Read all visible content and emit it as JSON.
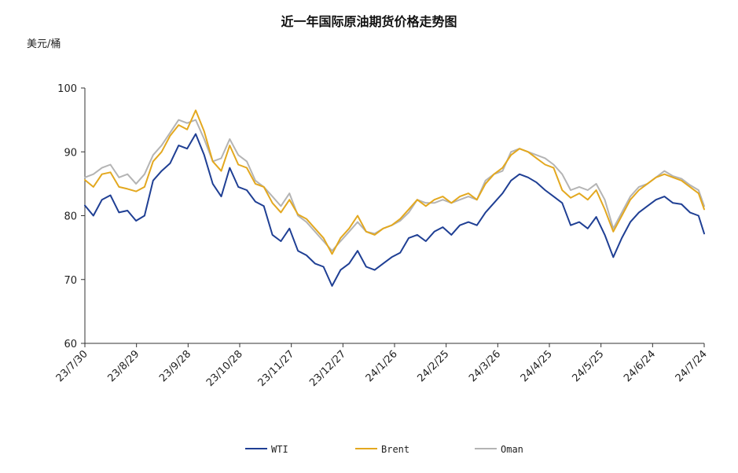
{
  "chart_data": {
    "type": "line",
    "title": "近一年国际原油期货价格走势图",
    "ylabel": "美元/桶",
    "ylim": [
      60,
      100
    ],
    "yticks": [
      "60",
      "70",
      "80",
      "90",
      "100"
    ],
    "x_tick_labels": [
      "23/7/30",
      "23/8/29",
      "23/9/28",
      "23/10/28",
      "23/11/27",
      "23/12/27",
      "24/1/26",
      "24/2/25",
      "24/3/26",
      "24/4/25",
      "24/5/25",
      "24/6/24",
      "24/7/24"
    ],
    "legend_position": "bottom",
    "grid": false,
    "colors": {
      "WTI": "#1f3f94",
      "Brent": "#e3a81f",
      "Oman": "#b4b4b4"
    },
    "series": [
      {
        "name": "WTI",
        "points": [
          [
            0,
            81.6
          ],
          [
            3,
            80.0
          ],
          [
            6,
            82.5
          ],
          [
            9,
            83.2
          ],
          [
            12,
            80.5
          ],
          [
            15,
            80.8
          ],
          [
            18,
            79.2
          ],
          [
            21,
            80.0
          ],
          [
            24,
            85.5
          ],
          [
            27,
            87.0
          ],
          [
            30,
            88.2
          ],
          [
            33,
            91.0
          ],
          [
            36,
            90.5
          ],
          [
            39,
            92.8
          ],
          [
            42,
            89.5
          ],
          [
            45,
            85.0
          ],
          [
            48,
            83.0
          ],
          [
            51,
            87.5
          ],
          [
            54,
            84.5
          ],
          [
            57,
            84.0
          ],
          [
            60,
            82.2
          ],
          [
            63,
            81.5
          ],
          [
            66,
            77.0
          ],
          [
            69,
            76.0
          ],
          [
            72,
            78.0
          ],
          [
            75,
            74.5
          ],
          [
            78,
            73.8
          ],
          [
            81,
            72.5
          ],
          [
            84,
            72.0
          ],
          [
            87,
            69.0
          ],
          [
            90,
            71.5
          ],
          [
            93,
            72.5
          ],
          [
            96,
            74.5
          ],
          [
            99,
            72.0
          ],
          [
            102,
            71.5
          ],
          [
            105,
            72.5
          ],
          [
            108,
            73.5
          ],
          [
            111,
            74.2
          ],
          [
            114,
            76.5
          ],
          [
            117,
            77.0
          ],
          [
            120,
            76.0
          ],
          [
            123,
            77.5
          ],
          [
            126,
            78.2
          ],
          [
            129,
            77.0
          ],
          [
            132,
            78.5
          ],
          [
            135,
            79.0
          ],
          [
            138,
            78.5
          ],
          [
            141,
            80.5
          ],
          [
            144,
            82.0
          ],
          [
            147,
            83.5
          ],
          [
            150,
            85.5
          ],
          [
            153,
            86.5
          ],
          [
            156,
            86.0
          ],
          [
            159,
            85.2
          ],
          [
            162,
            84.0
          ],
          [
            165,
            83.0
          ],
          [
            168,
            82.0
          ],
          [
            171,
            78.5
          ],
          [
            174,
            79.0
          ],
          [
            177,
            78.0
          ],
          [
            180,
            79.8
          ],
          [
            183,
            77.0
          ],
          [
            186,
            73.5
          ],
          [
            189,
            76.5
          ],
          [
            192,
            79.0
          ],
          [
            195,
            80.5
          ],
          [
            198,
            81.5
          ],
          [
            201,
            82.5
          ],
          [
            204,
            83.0
          ],
          [
            207,
            82.0
          ],
          [
            210,
            81.8
          ],
          [
            213,
            80.5
          ],
          [
            216,
            80.0
          ],
          [
            218,
            77.2
          ]
        ]
      },
      {
        "name": "Brent",
        "points": [
          [
            0,
            85.6
          ],
          [
            3,
            84.5
          ],
          [
            6,
            86.5
          ],
          [
            9,
            86.8
          ],
          [
            12,
            84.5
          ],
          [
            15,
            84.2
          ],
          [
            18,
            83.8
          ],
          [
            21,
            84.5
          ],
          [
            24,
            88.5
          ],
          [
            27,
            90.0
          ],
          [
            30,
            92.5
          ],
          [
            33,
            94.2
          ],
          [
            36,
            93.5
          ],
          [
            39,
            96.5
          ],
          [
            42,
            93.2
          ],
          [
            45,
            88.5
          ],
          [
            48,
            87.0
          ],
          [
            51,
            91.0
          ],
          [
            54,
            88.0
          ],
          [
            57,
            87.5
          ],
          [
            60,
            85.0
          ],
          [
            63,
            84.5
          ],
          [
            66,
            82.0
          ],
          [
            69,
            80.5
          ],
          [
            72,
            82.5
          ],
          [
            75,
            80.2
          ],
          [
            78,
            79.5
          ],
          [
            81,
            78.0
          ],
          [
            84,
            76.5
          ],
          [
            87,
            74.0
          ],
          [
            90,
            76.5
          ],
          [
            93,
            78.0
          ],
          [
            96,
            80.0
          ],
          [
            99,
            77.5
          ],
          [
            102,
            77.0
          ],
          [
            105,
            78.0
          ],
          [
            108,
            78.5
          ],
          [
            111,
            79.5
          ],
          [
            114,
            81.0
          ],
          [
            117,
            82.5
          ],
          [
            120,
            81.5
          ],
          [
            123,
            82.5
          ],
          [
            126,
            83.0
          ],
          [
            129,
            82.0
          ],
          [
            132,
            83.0
          ],
          [
            135,
            83.5
          ],
          [
            138,
            82.5
          ],
          [
            141,
            85.0
          ],
          [
            144,
            86.5
          ],
          [
            147,
            87.5
          ],
          [
            150,
            89.5
          ],
          [
            153,
            90.5
          ],
          [
            156,
            90.0
          ],
          [
            159,
            89.0
          ],
          [
            162,
            88.0
          ],
          [
            165,
            87.5
          ],
          [
            168,
            84.0
          ],
          [
            171,
            82.8
          ],
          [
            174,
            83.5
          ],
          [
            177,
            82.5
          ],
          [
            180,
            84.0
          ],
          [
            183,
            81.0
          ],
          [
            186,
            77.5
          ],
          [
            189,
            80.0
          ],
          [
            192,
            82.5
          ],
          [
            195,
            84.0
          ],
          [
            198,
            85.0
          ],
          [
            201,
            86.0
          ],
          [
            204,
            86.5
          ],
          [
            207,
            86.0
          ],
          [
            210,
            85.5
          ],
          [
            213,
            84.5
          ],
          [
            216,
            83.5
          ],
          [
            218,
            81.0
          ]
        ]
      },
      {
        "name": "Oman",
        "points": [
          [
            0,
            86.0
          ],
          [
            3,
            86.5
          ],
          [
            6,
            87.5
          ],
          [
            9,
            88.0
          ],
          [
            12,
            86.0
          ],
          [
            15,
            86.5
          ],
          [
            18,
            85.0
          ],
          [
            21,
            86.5
          ],
          [
            24,
            89.5
          ],
          [
            27,
            91.0
          ],
          [
            30,
            93.0
          ],
          [
            33,
            95.0
          ],
          [
            36,
            94.5
          ],
          [
            39,
            95.0
          ],
          [
            42,
            92.0
          ],
          [
            45,
            88.5
          ],
          [
            48,
            89.0
          ],
          [
            51,
            92.0
          ],
          [
            54,
            89.5
          ],
          [
            57,
            88.5
          ],
          [
            60,
            85.5
          ],
          [
            63,
            84.5
          ],
          [
            66,
            83.0
          ],
          [
            69,
            81.5
          ],
          [
            72,
            83.5
          ],
          [
            75,
            80.0
          ],
          [
            78,
            79.0
          ],
          [
            81,
            77.5
          ],
          [
            84,
            76.0
          ],
          [
            87,
            74.5
          ],
          [
            90,
            76.0
          ],
          [
            93,
            77.5
          ],
          [
            96,
            79.0
          ],
          [
            99,
            77.5
          ],
          [
            102,
            77.2
          ],
          [
            105,
            78.0
          ],
          [
            108,
            78.5
          ],
          [
            111,
            79.2
          ],
          [
            114,
            80.5
          ],
          [
            117,
            82.5
          ],
          [
            120,
            82.0
          ],
          [
            123,
            82.0
          ],
          [
            126,
            82.5
          ],
          [
            129,
            82.0
          ],
          [
            132,
            82.5
          ],
          [
            135,
            83.0
          ],
          [
            138,
            82.5
          ],
          [
            141,
            85.5
          ],
          [
            144,
            86.5
          ],
          [
            147,
            87.0
          ],
          [
            150,
            90.0
          ],
          [
            153,
            90.5
          ],
          [
            156,
            90.0
          ],
          [
            159,
            89.5
          ],
          [
            162,
            89.0
          ],
          [
            165,
            88.0
          ],
          [
            168,
            86.5
          ],
          [
            171,
            84.0
          ],
          [
            174,
            84.5
          ],
          [
            177,
            84.0
          ],
          [
            180,
            85.0
          ],
          [
            183,
            82.5
          ],
          [
            186,
            78.0
          ],
          [
            189,
            80.5
          ],
          [
            192,
            83.0
          ],
          [
            195,
            84.5
          ],
          [
            198,
            85.0
          ],
          [
            201,
            86.0
          ],
          [
            204,
            87.0
          ],
          [
            207,
            86.2
          ],
          [
            210,
            85.8
          ],
          [
            213,
            84.8
          ],
          [
            216,
            84.0
          ],
          [
            218,
            81.5
          ]
        ]
      }
    ]
  }
}
